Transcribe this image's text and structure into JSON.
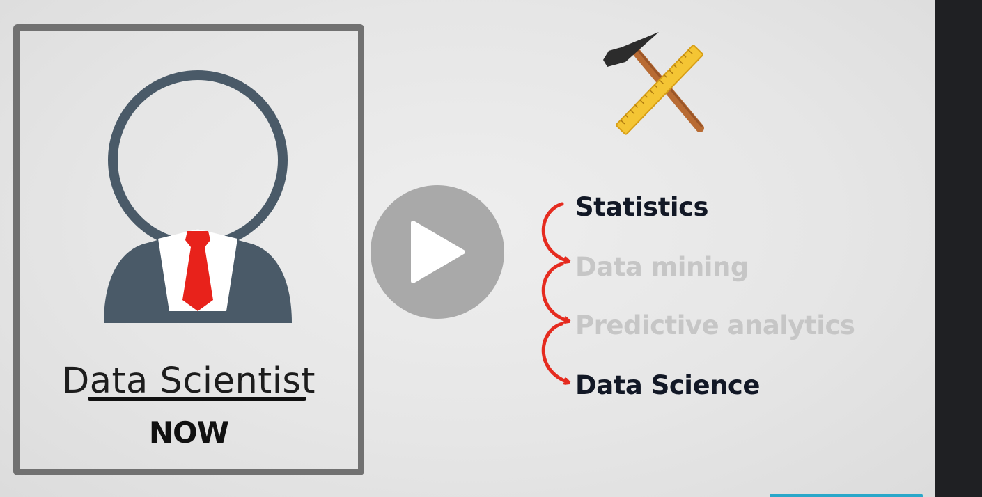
{
  "player": {
    "play_icon": "play-icon",
    "play_button_color": "#9a9a9a"
  },
  "card": {
    "title": "Data Scientist",
    "status": "NOW",
    "avatar_icon": "person-avatar-icon",
    "avatar_color": "#4a5a68",
    "tie_color": "#e8221b",
    "border_color": "#717171"
  },
  "tools": {
    "icon": "hammer-and-ruler-icon"
  },
  "evolution": {
    "arrow_color": "#e52b1f",
    "items": [
      {
        "label": "Statistics",
        "highlighted": true
      },
      {
        "label": "Data mining",
        "highlighted": false
      },
      {
        "label": "Predictive analytics",
        "highlighted": false
      },
      {
        "label": "Data Science",
        "highlighted": true
      }
    ]
  }
}
